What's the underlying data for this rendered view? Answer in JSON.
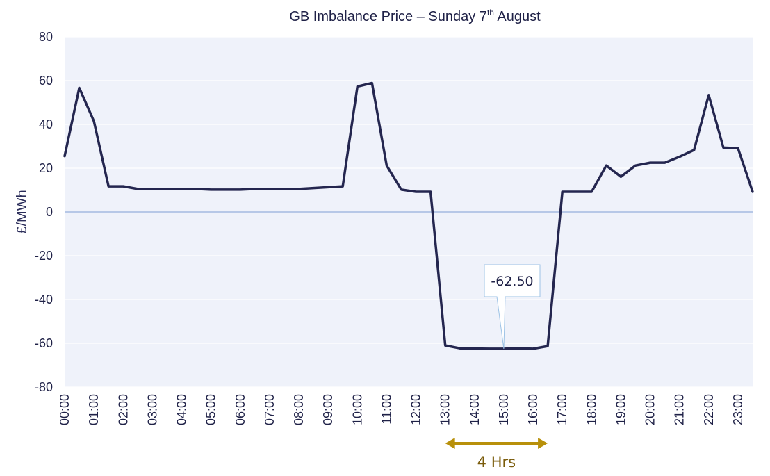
{
  "chart_data": {
    "type": "line",
    "title": "GB Imbalance Price – Sunday 7",
    "title_sup": "th",
    "title_tail": " August",
    "ylabel": "£/MWh",
    "xlabel": "",
    "ylim": [
      -80,
      80
    ],
    "yticks": [
      -80,
      -60,
      -40,
      -20,
      0,
      20,
      40,
      60,
      80
    ],
    "xtick_labels": [
      "00:00",
      "01:00",
      "02:00",
      "03:00",
      "04:00",
      "05:00",
      "06:00",
      "07:00",
      "08:00",
      "09:00",
      "10:00",
      "11:00",
      "12:00",
      "13:00",
      "14:00",
      "15:00",
      "16:00",
      "17:00",
      "18:00",
      "19:00",
      "20:00",
      "21:00",
      "22:00",
      "23:00"
    ],
    "x_hours": [
      0,
      0.5,
      1,
      1.5,
      2,
      2.5,
      3,
      3.5,
      4,
      4.5,
      5,
      5.5,
      6,
      6.5,
      7,
      7.5,
      8,
      8.5,
      9,
      9.5,
      10,
      10.5,
      11,
      11.5,
      12,
      12.5,
      13,
      13.5,
      14,
      14.5,
      15,
      15.5,
      16,
      16.5,
      17,
      17.5,
      18,
      18.5,
      19,
      19.5,
      20,
      20.5,
      21,
      21.5,
      22,
      22.5,
      23,
      23.5
    ],
    "series": [
      {
        "values": [
          25.5,
          56.7,
          41.5,
          11.7,
          11.7,
          10.5,
          10.5,
          10.5,
          10.5,
          10.5,
          10.2,
          10.2,
          10.2,
          10.5,
          10.5,
          10.5,
          10.5,
          11.7,
          57.3,
          58.9,
          21.2,
          10.2,
          9.2,
          9.2,
          -61.0,
          -62.3,
          -62.4,
          -62.5,
          -62.5,
          -62.3,
          -62.5,
          -61.3,
          9.2,
          9.2,
          9.2,
          21.2,
          16.1,
          21.2,
          22.5,
          22.5,
          25.2,
          28.3,
          53.4,
          29.4,
          29.1,
          9.2
        ],
        "x_hours": [
          0,
          0.5,
          1,
          1.5,
          2,
          2.5,
          3,
          3.5,
          4,
          4.5,
          5,
          5.5,
          6,
          6.5,
          7,
          7.5,
          8,
          9.5,
          10,
          10.5,
          11,
          11.5,
          12,
          12.5,
          13,
          13.5,
          14,
          14.5,
          15,
          15.5,
          16,
          16.5,
          17,
          17.5,
          18,
          18.5,
          19,
          19.5,
          20,
          20.5,
          21,
          21.5,
          22,
          22.5,
          23,
          23.5
        ],
        "color": "#24264f"
      }
    ],
    "callout": {
      "text": "-62.50",
      "x_hour": 15,
      "y": -62.5
    },
    "span_annotation": {
      "label": "4 Hrs",
      "start_hour": 13,
      "end_hour": 16.5,
      "color": "#b8900a"
    },
    "grid": true,
    "plot_background": "#eff2fa",
    "zero_line_color": "#7f9fd4",
    "legend": "none"
  }
}
